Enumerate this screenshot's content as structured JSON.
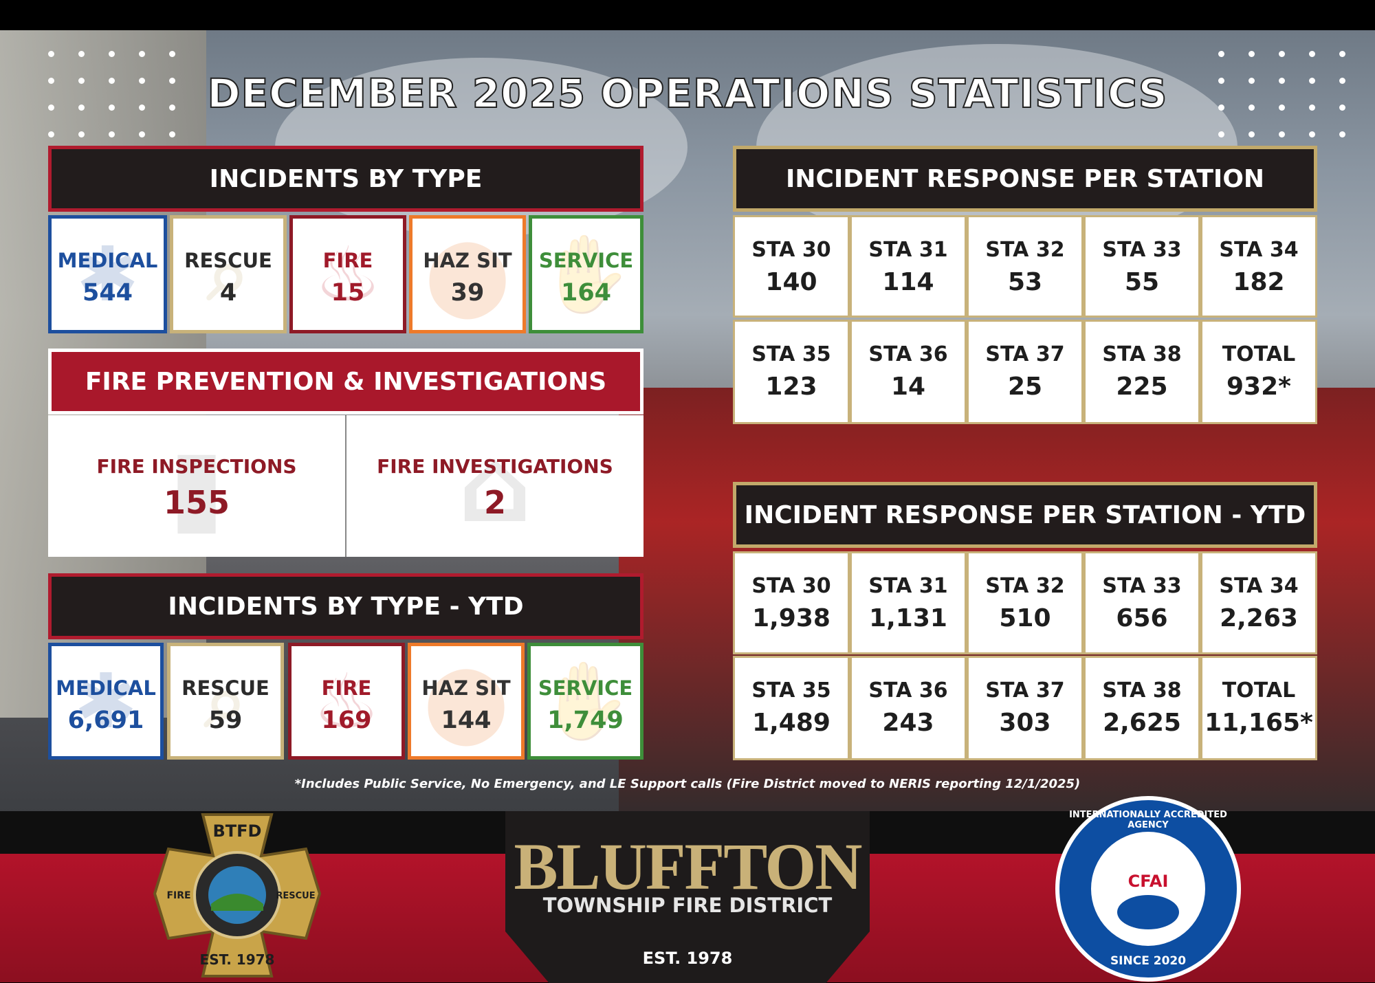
{
  "title": "DECEMBER 2025 OPERATIONS STATISTICS",
  "incidents_by_type": {
    "header": "INCIDENTS BY TYPE",
    "tiles": [
      {
        "label": "MEDICAL",
        "value": "544",
        "color": "#1d4f9e",
        "icon": "star-of-life-icon"
      },
      {
        "label": "RESCUE",
        "value": "4",
        "color": "#2b2b2b",
        "icon": "magnifier-icon"
      },
      {
        "label": "FIRE",
        "value": "15",
        "color": "#a01a2a",
        "icon": "flame-icon"
      },
      {
        "label": "HAZ SIT",
        "value": "39",
        "color": "#333333",
        "icon": "hazard-icon"
      },
      {
        "label": "SERVICE",
        "value": "164",
        "color": "#3e8e3a",
        "icon": "helping-hand-icon"
      }
    ]
  },
  "fire_prevention": {
    "header": "FIRE PREVENTION & INVESTIGATIONS",
    "inspections_label": "FIRE INSPECTIONS",
    "inspections_value": "155",
    "investigations_label": "FIRE INVESTIGATIONS",
    "investigations_value": "2"
  },
  "incidents_by_type_ytd": {
    "header": "INCIDENTS BY TYPE - YTD",
    "tiles": [
      {
        "label": "MEDICAL",
        "value": "6,691"
      },
      {
        "label": "RESCUE",
        "value": "59"
      },
      {
        "label": "FIRE",
        "value": "169"
      },
      {
        "label": "HAZ SIT",
        "value": "144"
      },
      {
        "label": "SERVICE",
        "value": "1,749"
      }
    ]
  },
  "station_response": {
    "header": "INCIDENT RESPONSE PER STATION",
    "cells": [
      {
        "label": "STA 30",
        "value": "140"
      },
      {
        "label": "STA 31",
        "value": "114"
      },
      {
        "label": "STA 32",
        "value": "53"
      },
      {
        "label": "STA 33",
        "value": "55"
      },
      {
        "label": "STA 34",
        "value": "182"
      },
      {
        "label": "STA 35",
        "value": "123"
      },
      {
        "label": "STA 36",
        "value": "14"
      },
      {
        "label": "STA 37",
        "value": "25"
      },
      {
        "label": "STA 38",
        "value": "225"
      },
      {
        "label": "TOTAL",
        "value": "932*"
      }
    ]
  },
  "station_response_ytd": {
    "header": "INCIDENT RESPONSE PER STATION - YTD",
    "cells": [
      {
        "label": "STA 30",
        "value": "1,938"
      },
      {
        "label": "STA 31",
        "value": "1,131"
      },
      {
        "label": "STA 32",
        "value": "510"
      },
      {
        "label": "STA 33",
        "value": "656"
      },
      {
        "label": "STA 34",
        "value": "2,263"
      },
      {
        "label": "STA 35",
        "value": "1,489"
      },
      {
        "label": "STA 36",
        "value": "243"
      },
      {
        "label": "STA 37",
        "value": "303"
      },
      {
        "label": "STA 38",
        "value": "2,625"
      },
      {
        "label": "TOTAL",
        "value": "11,165*"
      }
    ]
  },
  "footnote": "*Includes Public Service, No Emergency, and LE Support calls (Fire District moved to NERIS reporting 12/1/2025)",
  "branding": {
    "name": "BLUFFTON",
    "subtitle": "TOWNSHIP FIRE DISTRICT",
    "established": "EST. 1978",
    "badge_top": "BTFD",
    "badge_left": "FIRE",
    "badge_right": "RESCUE",
    "badge_bottom": "EST. 1978",
    "cfai_label": "CFAI",
    "cfai_ring": "INTERNATIONALLY ACCREDITED AGENCY",
    "cfai_since": "SINCE 2020"
  }
}
